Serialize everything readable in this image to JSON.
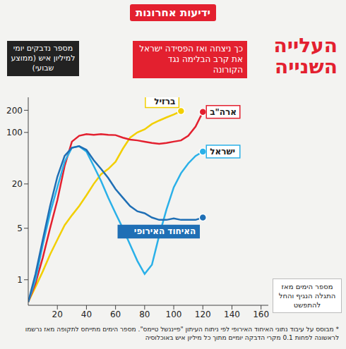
{
  "chart_data": {
    "type": "line",
    "source": "ידיעות אחרונות",
    "title": "העלייה השנייה",
    "subtitle": "כך ניצחה ואז הפסידה ישראל את קרב הבלימה נגד הקורונה",
    "y_label": "מספר נדבקים יומי למיליון איש (ממוצע שבועי)",
    "x_label": "מספר הימים מאז התגלה הנגיף והחל להתפשט",
    "note": "* מבוסס על עיבוד נתוני האיחוד האירופי לפי ניתוח העיתון \"פייננשל טיימס\". מספר הימים מתייחס לתקופה מאז נרשמו לראשונה לפחות 0.1 מקרי הדבקה יומיים מתוך כל מיליון איש באוכלוסיה",
    "log": "y",
    "grid": false,
    "xlim": [
      0,
      165
    ],
    "xticks": [
      20,
      40,
      60,
      80,
      100,
      120,
      140,
      160
    ],
    "ylim": [
      0.45,
      300
    ],
    "yticks": [
      1,
      5,
      20,
      100,
      200
    ],
    "x": [
      0,
      5,
      10,
      15,
      20,
      25,
      30,
      35,
      40,
      45,
      50,
      55,
      60,
      65,
      70,
      75,
      80,
      85,
      90,
      95,
      100,
      105,
      110,
      115,
      120
    ],
    "series": [
      {
        "name": "ברזיל",
        "color": "#f2cf00",
        "marker": "circle",
        "values": [
          0.5,
          0.8,
          1.3,
          2.2,
          3.5,
          5.5,
          7.5,
          10,
          14,
          20,
          27,
          32,
          40,
          60,
          85,
          100,
          110,
          130,
          145,
          160,
          175,
          195,
          null,
          null,
          null
        ]
      },
      {
        "name": "ארה\"ב",
        "color": "#e3202f",
        "marker": "circle",
        "values": [
          0.5,
          0.9,
          2,
          5,
          12,
          35,
          75,
          90,
          95,
          93,
          95,
          93,
          92,
          85,
          80,
          78,
          75,
          72,
          70,
          72,
          75,
          78,
          90,
          120,
          190
        ]
      },
      {
        "name": "ישראל",
        "color": "#2ab0e8",
        "marker": "circle",
        "values": [
          0.5,
          1,
          3,
          8,
          18,
          40,
          62,
          65,
          55,
          35,
          22,
          13,
          8,
          5,
          3,
          1.8,
          1.2,
          1.6,
          4,
          9,
          18,
          28,
          38,
          48,
          55
        ]
      },
      {
        "name": "האיחוד האירופי",
        "color": "#1f6fb5",
        "marker": "circle",
        "values": [
          0.5,
          1.2,
          3.5,
          10,
          25,
          48,
          62,
          65,
          58,
          42,
          32,
          24,
          17,
          13,
          10,
          8.5,
          8,
          7,
          6.5,
          6.5,
          6.8,
          6.5,
          6.5,
          6.5,
          7
        ]
      }
    ]
  }
}
